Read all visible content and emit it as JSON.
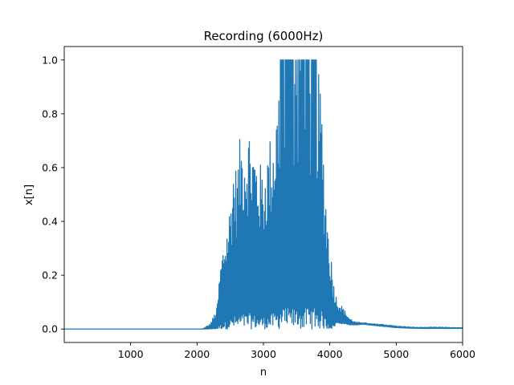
{
  "chart_data": {
    "type": "line",
    "title": "Recording (6000Hz)",
    "xlabel": "n",
    "ylabel": "x[n]",
    "xlim": [
      0,
      6000
    ],
    "ylim": [
      -0.05,
      1.05
    ],
    "xticks": [
      1000,
      2000,
      3000,
      4000,
      5000,
      6000
    ],
    "xtick_labels": [
      "1000",
      "2000",
      "3000",
      "4000",
      "5000",
      "6000"
    ],
    "yticks": [
      0.0,
      0.2,
      0.4,
      0.6,
      0.8,
      1.0
    ],
    "ytick_labels": [
      "0.0",
      "0.2",
      "0.4",
      "0.6",
      "0.8",
      "1.0"
    ],
    "grid": false,
    "series_color": "#1f77b4",
    "baseline": 0.0,
    "silence_end": 2080,
    "envelope": {
      "x": [
        2080,
        2200,
        2300,
        2350,
        2400,
        2450,
        2500,
        2550,
        2600,
        2650,
        2700,
        2750,
        2780,
        2820,
        2860,
        2900,
        2950,
        3000,
        3050,
        3100,
        3150,
        3200,
        3250,
        3300,
        3400,
        3500,
        3600,
        3700,
        3800,
        3850,
        3880,
        3920,
        3980,
        4050,
        4100,
        4200,
        4300,
        4400,
        4500,
        4600,
        4800,
        5000,
        5200,
        5400,
        5600,
        5800,
        6000
      ],
      "upper": [
        0.0,
        0.02,
        0.08,
        0.24,
        0.33,
        0.39,
        0.48,
        0.64,
        0.6,
        0.72,
        0.75,
        0.73,
        0.78,
        0.72,
        0.7,
        0.66,
        0.62,
        0.6,
        0.66,
        0.72,
        0.76,
        0.85,
        1.0,
        1.0,
        1.0,
        1.0,
        1.0,
        1.0,
        1.0,
        0.92,
        0.84,
        0.6,
        0.38,
        0.2,
        0.12,
        0.08,
        0.04,
        0.025,
        0.025,
        0.02,
        0.018,
        0.012,
        0.008,
        0.006,
        0.008,
        0.006,
        0.005
      ],
      "lower": [
        0.0,
        0.0,
        0.0,
        0.0,
        0.0,
        0.0,
        0.0,
        0.0,
        0.0,
        0.0,
        0.0,
        0.0,
        0.0,
        0.0,
        0.0,
        0.0,
        0.0,
        0.0,
        0.0,
        0.0,
        0.0,
        0.0,
        0.0,
        0.0,
        0.0,
        0.0,
        0.0,
        0.0,
        0.0,
        0.0,
        0.0,
        0.0,
        0.0,
        0.0,
        0.02,
        0.02,
        0.015,
        0.015,
        0.018,
        0.015,
        0.01,
        0.005,
        0.003,
        0.002,
        0.002,
        0.002,
        0.002
      ]
    }
  }
}
